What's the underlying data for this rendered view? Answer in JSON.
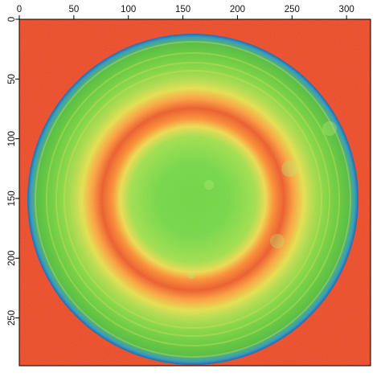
{
  "plot": {
    "x_axis": {
      "ticks": [
        0,
        50,
        100,
        150,
        200,
        250,
        300
      ],
      "range": [
        0,
        322
      ],
      "position": "top"
    },
    "y_axis": {
      "ticks": [
        0,
        50,
        100,
        150,
        200,
        250
      ],
      "range": [
        0,
        290
      ],
      "orientation": "downward"
    }
  },
  "image": {
    "description": "thermal-like false-color map of a circular sample with concentric rings",
    "colors": {
      "background": "#ef4a25",
      "outer_edge": "#0f7ad8",
      "green": "#59cc3a",
      "light_green": "#8fe04b",
      "yellow": "#e9e64a",
      "orange": "#ff8b2c",
      "red": "#e84a23"
    },
    "features": {
      "disk_center_data": [
        159,
        152
      ],
      "disk_radius_data": 151,
      "inner_ring_radius_data": 80,
      "outer_ring_radius_data": 104
    }
  }
}
